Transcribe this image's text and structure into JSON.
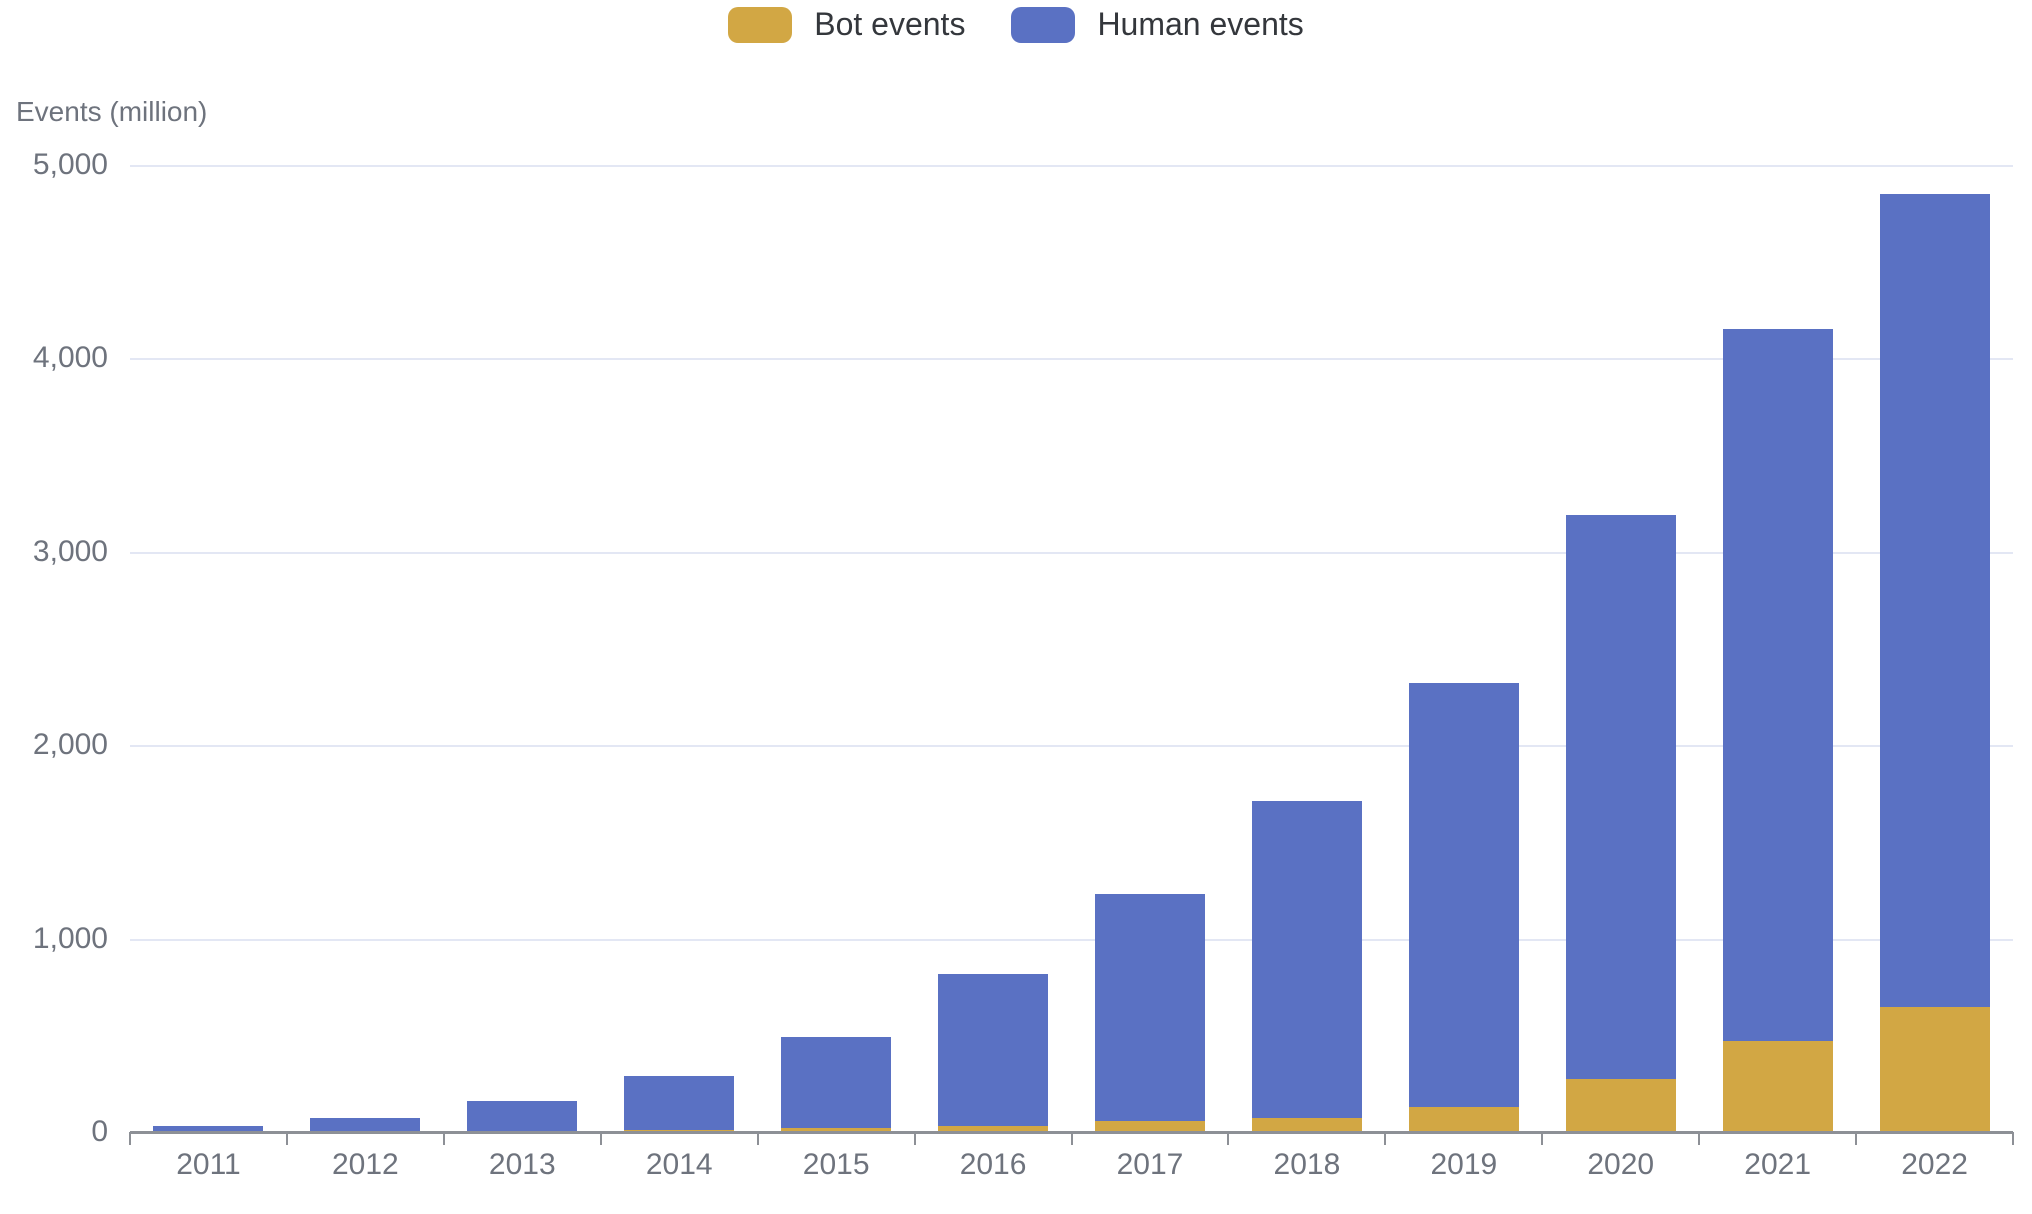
{
  "legend": {
    "items": [
      {
        "label": "Bot events",
        "color": "#d2a744"
      },
      {
        "label": "Human events",
        "color": "#5a71c3"
      }
    ]
  },
  "y_axis": {
    "title": "Events (million)",
    "tick_labels": [
      "5,000",
      "4,000",
      "3,000",
      "2,000",
      "1,000",
      "0"
    ],
    "tick_values": [
      5000,
      4000,
      3000,
      2000,
      1000,
      0
    ]
  },
  "chart_data": {
    "type": "bar",
    "stacked": true,
    "title": "",
    "ylabel": "Events (million)",
    "xlabel": "",
    "ylim": [
      0,
      5000
    ],
    "ytick_interval": 1000,
    "grid": "horizontal",
    "legend_position": "top-center",
    "categories": [
      "2011",
      "2012",
      "2013",
      "2014",
      "2015",
      "2016",
      "2017",
      "2018",
      "2019",
      "2020",
      "2021",
      "2022"
    ],
    "series": [
      {
        "name": "Bot events",
        "color": "#d2a744",
        "values": [
          1,
          2,
          5,
          10,
          20,
          30,
          55,
          70,
          130,
          275,
          470,
          645
        ]
      },
      {
        "name": "Human events",
        "color": "#5a71c3",
        "values": [
          29,
          68,
          155,
          280,
          470,
          785,
          1175,
          1640,
          2190,
          2915,
          3680,
          4205
        ]
      }
    ],
    "totals": [
      30,
      70,
      160,
      290,
      490,
      815,
      1230,
      1710,
      2320,
      3190,
      4150,
      4850
    ]
  },
  "style": {
    "grid_color": "#e3e7f4",
    "axis_color": "#8d9096",
    "tick_text_color": "#6e737d",
    "legend_text_color": "#34373c",
    "background": "#ffffff"
  }
}
